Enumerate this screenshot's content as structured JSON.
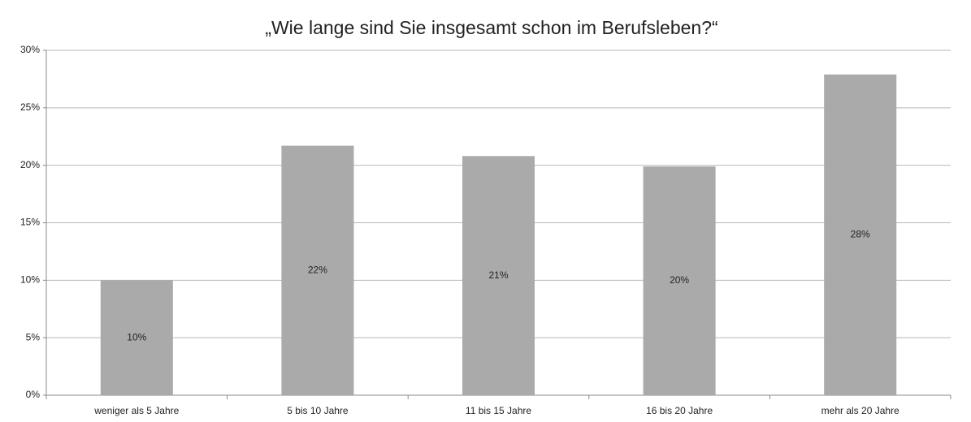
{
  "chart_data": {
    "type": "bar",
    "title": "„Wie lange sind Sie insgesamt schon im Berufsleben?“",
    "categories": [
      "weniger als 5 Jahre",
      "5 bis 10 Jahre",
      "11 bis 15 Jahre",
      "16 bis 20 Jahre",
      "mehr als 20 Jahre"
    ],
    "values": [
      10,
      21.7,
      20.8,
      19.9,
      27.9
    ],
    "value_labels": [
      "10%",
      "22%",
      "21%",
      "20%",
      "28%"
    ],
    "color": "#aaaaaa",
    "ylim": [
      0,
      30
    ],
    "yticks": [
      {
        "value": 0,
        "label": "0%"
      },
      {
        "value": 5,
        "label": "5%"
      },
      {
        "value": 10,
        "label": "10%"
      },
      {
        "value": 15,
        "label": "15%"
      },
      {
        "value": 20,
        "label": "20%"
      },
      {
        "value": 25,
        "label": "25%"
      },
      {
        "value": 30,
        "label": "30%"
      }
    ],
    "grid": true
  }
}
